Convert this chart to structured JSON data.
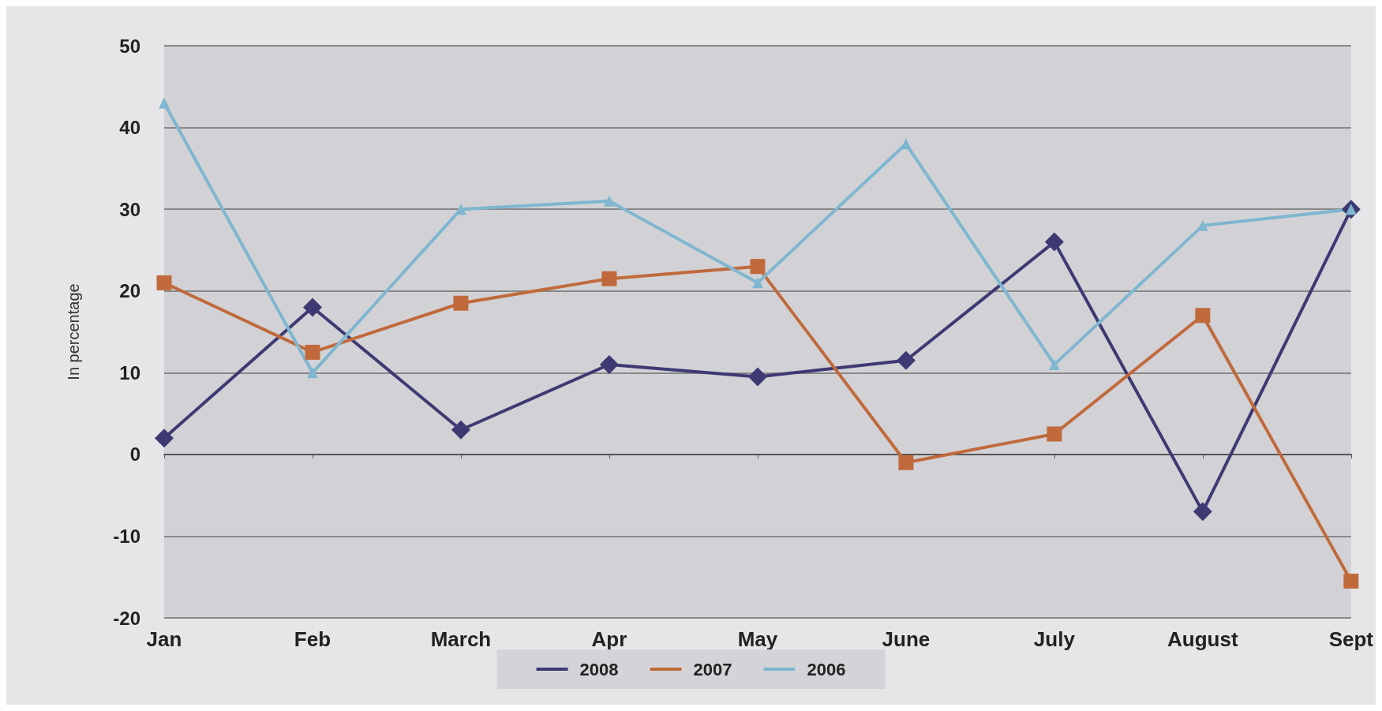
{
  "chart_data": {
    "type": "line",
    "ylabel": "In percentage",
    "categories": [
      "Jan",
      "Feb",
      "March",
      "Apr",
      "May",
      "June",
      "July",
      "August",
      "Sept"
    ],
    "series": [
      {
        "name": "2008",
        "color": "#3d3a73",
        "marker": "diamond",
        "values": [
          2,
          18,
          3,
          11,
          9.5,
          11.5,
          26,
          -7,
          30
        ]
      },
      {
        "name": "2007",
        "color": "#c06a3c",
        "marker": "square",
        "values": [
          21,
          12.5,
          18.5,
          21.5,
          23,
          -1,
          2.5,
          17,
          -15.5
        ]
      },
      {
        "name": "2006",
        "color": "#7fb6d0",
        "marker": "triangle",
        "values": [
          43,
          10,
          30,
          31,
          21,
          38,
          11,
          28,
          30
        ]
      }
    ],
    "ylim": [
      -20,
      50
    ],
    "yticks": [
      -20,
      -10,
      0,
      10,
      20,
      30,
      40,
      50
    ],
    "grid": "y",
    "legend": "bottom",
    "line_style": "solid"
  }
}
